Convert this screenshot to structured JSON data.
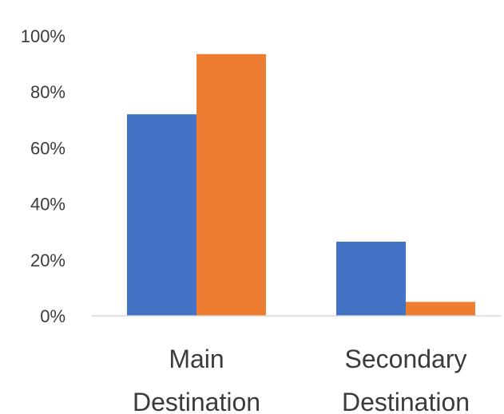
{
  "chart_data": {
    "type": "bar",
    "categories": [
      [
        "Main",
        "Destination"
      ],
      [
        "Secondary",
        "Destination"
      ]
    ],
    "series": [
      {
        "color": "#4472c4",
        "values": [
          72,
          26.5
        ]
      },
      {
        "color": "#ed7d31",
        "values": [
          93.5,
          5
        ]
      }
    ],
    "yticks": [
      "0%",
      "20%",
      "40%",
      "60%",
      "80%",
      "100%"
    ],
    "ylim": [
      0,
      100
    ],
    "grid": false,
    "legend": "none",
    "axis_color": "#d9d9d9"
  }
}
